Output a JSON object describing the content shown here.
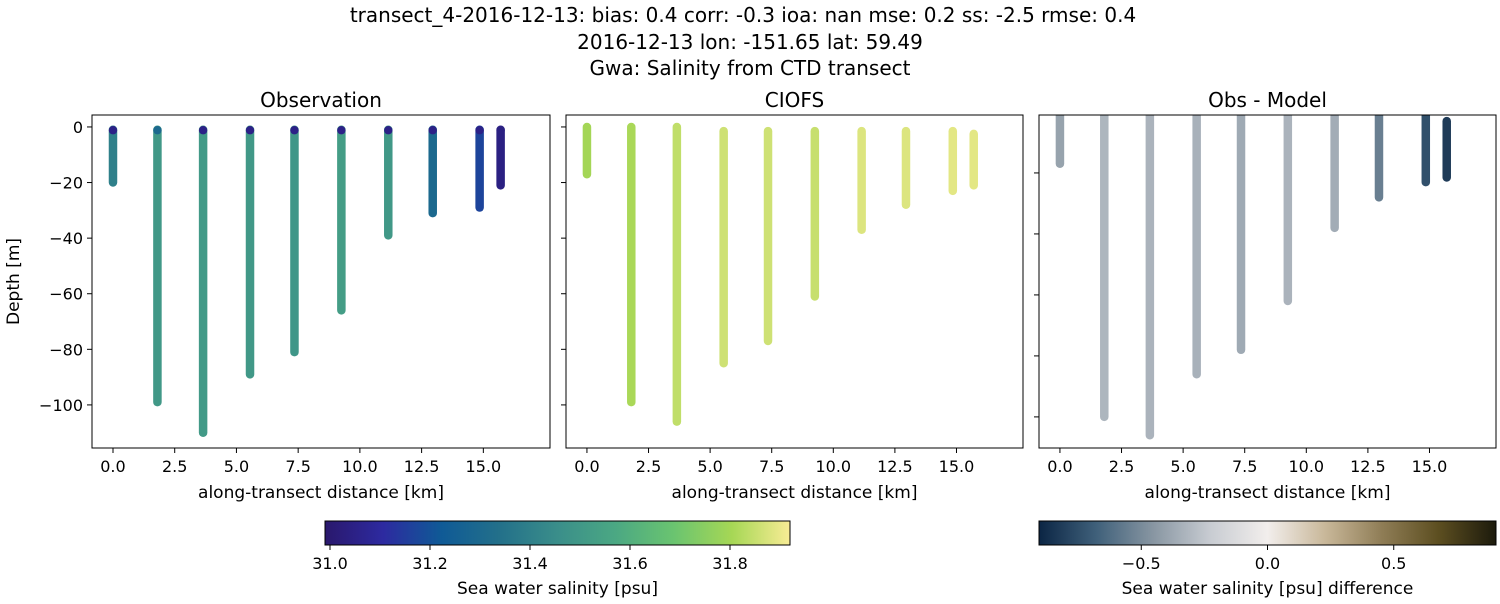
{
  "chart_data": {
    "type": "scatter",
    "suptitle": [
      "transect_4-2016-12-13: bias: 0.4  corr: -0.3  ioa: nan  mse: 0.2  ss: -2.5  rmse: 0.4",
      "2016-12-13 lon: -151.65 lat: 59.49",
      "Gwa: Salinity from CTD transect"
    ],
    "panels": [
      {
        "title": "Observation",
        "xlabel": "along-transect distance [km]",
        "ylabel": "Depth [m]",
        "xlim": [
          -0.85,
          17.7
        ],
        "ylim": [
          -115.5,
          4.3
        ],
        "yticks": [
          0,
          -20,
          -40,
          -60,
          -80,
          -100
        ],
        "ytick_labels": [
          "0",
          "−20",
          "−40",
          "−60",
          "−80",
          "−100"
        ],
        "show_ytick_labels": true,
        "colormap": "salinity",
        "field": "obs"
      },
      {
        "title": "CIOFS",
        "xlabel": "along-transect distance [km]",
        "ylabel": "",
        "xlim": [
          -0.85,
          17.7
        ],
        "ylim": [
          -115.5,
          4.3
        ],
        "yticks": [
          0,
          -20,
          -40,
          -60,
          -80,
          -100
        ],
        "ytick_labels": [],
        "show_ytick_labels": false,
        "colormap": "salinity",
        "field": "model"
      },
      {
        "title": "Obs - Model",
        "xlabel": "along-transect distance [km]",
        "ylabel": "",
        "xlim": [
          -0.85,
          17.7
        ],
        "ylim": [
          -110.2,
          -1.0
        ],
        "yticks": [
          -20,
          -40,
          -60,
          -80,
          -100
        ],
        "ytick_labels": [],
        "show_ytick_labels": false,
        "colormap": "difference",
        "field": "diff"
      }
    ],
    "xticks": [
      0,
      2.5,
      5,
      7.5,
      10,
      12.5,
      15
    ],
    "xtick_labels": [
      "0.0",
      "2.5",
      "5.0",
      "7.5",
      "10.0",
      "12.5",
      "15.0"
    ],
    "stations": [
      {
        "x": 0.0,
        "obs": {
          "top": -1,
          "bottom": -20,
          "value": 31.4,
          "surface": 31.05
        },
        "model": {
          "top": 0,
          "bottom": -17,
          "value": 31.8
        },
        "diff": {
          "top": -1,
          "bottom": -17,
          "value": -0.4
        }
      },
      {
        "x": 1.8,
        "obs": {
          "top": -1,
          "bottom": -99,
          "value": 31.5,
          "surface": 31.3
        },
        "model": {
          "top": 0,
          "bottom": -99,
          "value": 31.81
        },
        "diff": {
          "top": -1,
          "bottom": -100,
          "value": -0.32
        }
      },
      {
        "x": 3.65,
        "obs": {
          "top": -1,
          "bottom": -110,
          "value": 31.51,
          "surface": 31.05
        },
        "model": {
          "top": 0,
          "bottom": -106,
          "value": 31.84
        },
        "diff": {
          "top": -1,
          "bottom": -106,
          "value": -0.33
        }
      },
      {
        "x": 5.55,
        "obs": {
          "top": -1,
          "bottom": -89,
          "value": 31.5,
          "surface": 31.05
        },
        "model": {
          "top": -1.5,
          "bottom": -85,
          "value": 31.86
        },
        "diff": {
          "top": -1.5,
          "bottom": -86,
          "value": -0.34
        }
      },
      {
        "x": 7.35,
        "obs": {
          "top": -1,
          "bottom": -81,
          "value": 31.49,
          "surface": 31.05
        },
        "model": {
          "top": -1.5,
          "bottom": -77,
          "value": 31.86
        },
        "diff": {
          "top": -1,
          "bottom": -78,
          "value": -0.37
        }
      },
      {
        "x": 9.25,
        "obs": {
          "top": -1,
          "bottom": -66,
          "value": 31.52,
          "surface": 31.05
        },
        "model": {
          "top": -1.5,
          "bottom": -61,
          "value": 31.85
        },
        "diff": {
          "top": -1,
          "bottom": -62,
          "value": -0.33
        }
      },
      {
        "x": 11.15,
        "obs": {
          "top": -1,
          "bottom": -39,
          "value": 31.5,
          "surface": 31.05
        },
        "model": {
          "top": -1.5,
          "bottom": -37,
          "value": 31.88
        },
        "diff": {
          "top": -1.5,
          "bottom": -38,
          "value": -0.36
        }
      },
      {
        "x": 12.95,
        "obs": {
          "top": -1,
          "bottom": -31,
          "value": 31.3,
          "surface": 31.05
        },
        "model": {
          "top": -1.5,
          "bottom": -28,
          "value": 31.88
        },
        "diff": {
          "top": -1,
          "bottom": -28,
          "value": -0.55
        }
      },
      {
        "x": 14.85,
        "obs": {
          "top": -1,
          "bottom": -29,
          "value": 31.17,
          "surface": 31.05
        },
        "model": {
          "top": -1.5,
          "bottom": -23,
          "value": 31.89
        },
        "diff": {
          "top": -1,
          "bottom": -23,
          "value": -0.74
        }
      },
      {
        "x": 15.7,
        "obs": {
          "top": -1,
          "bottom": -21,
          "value": 31.04,
          "surface": 31.04
        },
        "model": {
          "top": -2.5,
          "bottom": -21,
          "value": 31.89
        },
        "diff": {
          "top": -3,
          "bottom": -21.5,
          "value": -0.82
        }
      }
    ],
    "colorbars": {
      "salinity": {
        "label": "Sea water salinity [psu]",
        "range": [
          30.99,
          31.92
        ],
        "ticks": [
          31.0,
          31.2,
          31.4,
          31.6,
          31.8
        ],
        "tick_labels": [
          "31.0",
          "31.2",
          "31.4",
          "31.6",
          "31.8"
        ],
        "colors": [
          "#2a186c",
          "#2d2aa0",
          "#0f5a96",
          "#23708a",
          "#3a8e8a",
          "#4ba883",
          "#6ac470",
          "#a6d755",
          "#f8ec95"
        ]
      },
      "difference": {
        "label": "Sea water salinity [psu] difference",
        "range": [
          -0.905,
          0.905
        ],
        "ticks": [
          -0.5,
          0.0,
          0.5
        ],
        "tick_labels": [
          "−0.5",
          "0.0",
          "0.5"
        ],
        "colors": [
          "#0b2544",
          "#3f607a",
          "#8896a2",
          "#c8ccd2",
          "#f2eeec",
          "#c9b89a",
          "#8f7d56",
          "#5c4e20",
          "#1c1a0c"
        ]
      }
    }
  }
}
